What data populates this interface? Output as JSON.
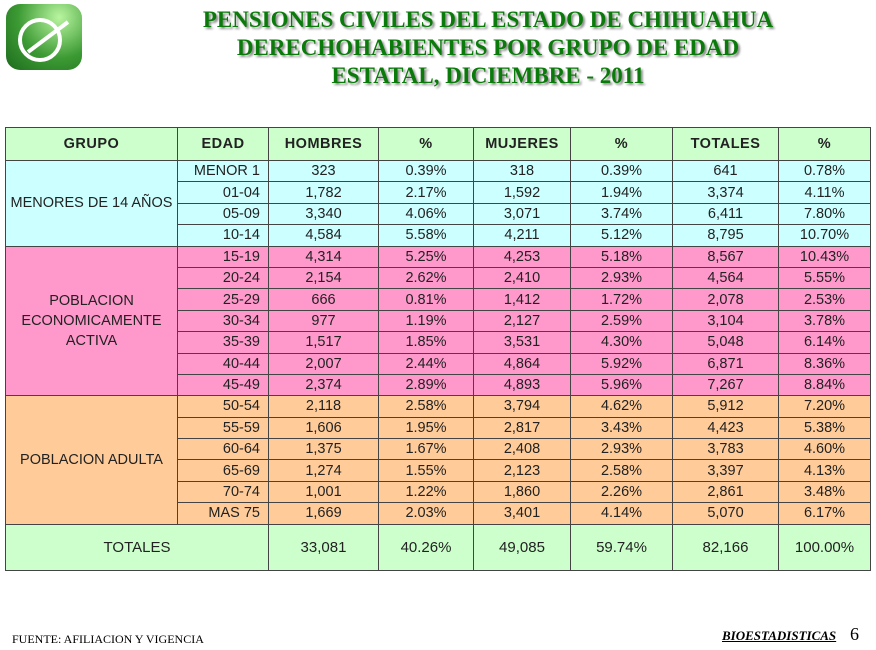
{
  "title": [
    "PENSIONES CIVILES DEL ESTADO DE CHIHUAHUA",
    "DERECHOHABIENTES POR GRUPO DE EDAD",
    "ESTATAL, DICIEMBRE - 2011"
  ],
  "headers": [
    "GRUPO",
    "EDAD",
    "HOMBRES",
    "%",
    "MUJERES",
    "%",
    "TOTALES",
    "%"
  ],
  "groups": [
    {
      "label": "MENORES DE 14 AÑOS",
      "rows": [
        [
          "MENOR 1",
          "323",
          "0.39%",
          "318",
          "0.39%",
          "641",
          "0.78%"
        ],
        [
          "01-04",
          "1,782",
          "2.17%",
          "1,592",
          "1.94%",
          "3,374",
          "4.11%"
        ],
        [
          "05-09",
          "3,340",
          "4.06%",
          "3,071",
          "3.74%",
          "6,411",
          "7.80%"
        ],
        [
          "10-14",
          "4,584",
          "5.58%",
          "4,211",
          "5.12%",
          "8,795",
          "10.70%"
        ]
      ]
    },
    {
      "label": "POBLACION ECONOMICAMENTE ACTIVA",
      "rows": [
        [
          "15-19",
          "4,314",
          "5.25%",
          "4,253",
          "5.18%",
          "8,567",
          "10.43%"
        ],
        [
          "20-24",
          "2,154",
          "2.62%",
          "2,410",
          "2.93%",
          "4,564",
          "5.55%"
        ],
        [
          "25-29",
          "666",
          "0.81%",
          "1,412",
          "1.72%",
          "2,078",
          "2.53%"
        ],
        [
          "30-34",
          "977",
          "1.19%",
          "2,127",
          "2.59%",
          "3,104",
          "3.78%"
        ],
        [
          "35-39",
          "1,517",
          "1.85%",
          "3,531",
          "4.30%",
          "5,048",
          "6.14%"
        ],
        [
          "40-44",
          "2,007",
          "2.44%",
          "4,864",
          "5.92%",
          "6,871",
          "8.36%"
        ],
        [
          "45-49",
          "2,374",
          "2.89%",
          "4,893",
          "5.96%",
          "7,267",
          "8.84%"
        ]
      ]
    },
    {
      "label": "POBLACION ADULTA",
      "rows": [
        [
          "50-54",
          "2,118",
          "2.58%",
          "3,794",
          "4.62%",
          "5,912",
          "7.20%"
        ],
        [
          "55-59",
          "1,606",
          "1.95%",
          "2,817",
          "3.43%",
          "4,423",
          "5.38%"
        ],
        [
          "60-64",
          "1,375",
          "1.67%",
          "2,408",
          "2.93%",
          "3,783",
          "4.60%"
        ],
        [
          "65-69",
          "1,274",
          "1.55%",
          "2,123",
          "2.58%",
          "3,397",
          "4.13%"
        ],
        [
          "70-74",
          "1,001",
          "1.22%",
          "1,860",
          "2.26%",
          "2,861",
          "3.48%"
        ],
        [
          "MAS 75",
          "1,669",
          "2.03%",
          "3,401",
          "4.14%",
          "5,070",
          "6.17%"
        ]
      ]
    }
  ],
  "totals": [
    "TOTALES",
    "33,081",
    "40.26%",
    "49,085",
    "59.74%",
    "82,166",
    "100.00%"
  ],
  "footer": {
    "source": "FUENTE:  AFILIACION  Y VIGENCIA",
    "dept": "BIOESTADISTICAS",
    "page": "6"
  }
}
